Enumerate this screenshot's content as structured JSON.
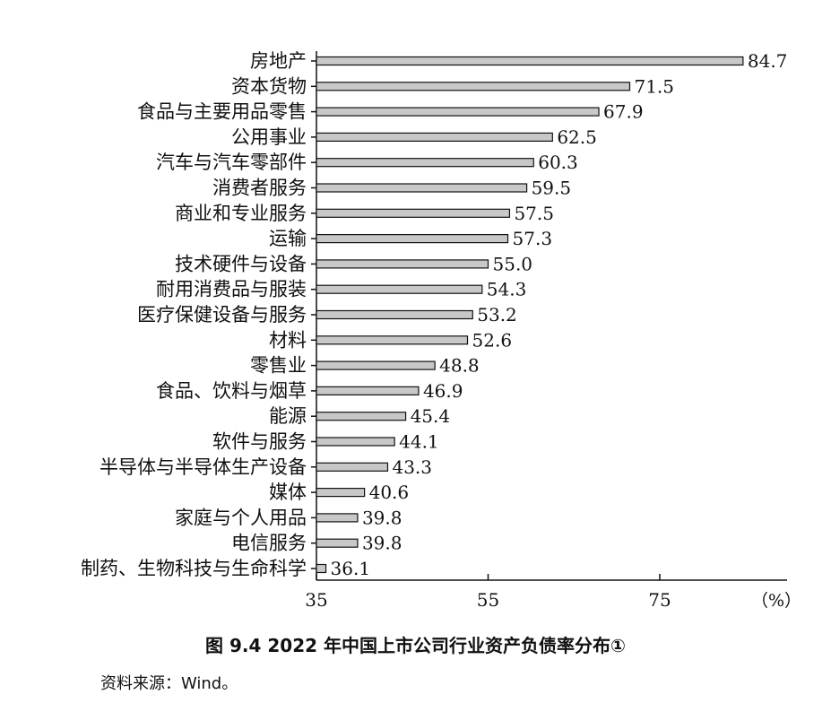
{
  "figure": {
    "title": "图 9.4   2022 年中国上市公司行业资产负债率分布①",
    "source": "资料来源：Wind。"
  },
  "chart_data": {
    "type": "bar",
    "orientation": "horizontal",
    "unit": "（%）",
    "xlim": [
      35,
      88
    ],
    "xticks": [
      35,
      55,
      75
    ],
    "categories": [
      "房地产",
      "资本货物",
      "食品与主要用品零售",
      "公用事业",
      "汽车与汽车零部件",
      "消费者服务",
      "商业和专业服务",
      "运输",
      "技术硬件与设备",
      "耐用消费品与服装",
      "医疗保健设备与服务",
      "材料",
      "零售业",
      "食品、饮料与烟草",
      "能源",
      "软件与服务",
      "半导体与半导体生产设备",
      "媒体",
      "家庭与个人用品",
      "电信服务",
      "制药、生物科技与生命科学"
    ],
    "values": [
      84.7,
      71.5,
      67.9,
      62.5,
      60.3,
      59.5,
      57.5,
      57.3,
      55.0,
      54.3,
      53.2,
      52.6,
      48.8,
      46.9,
      45.4,
      44.1,
      43.3,
      40.6,
      39.8,
      39.8,
      36.1
    ],
    "value_labels": [
      "84.7",
      "71.5",
      "67.9",
      "62.5",
      "60.3",
      "59.5",
      "57.5",
      "57.3",
      "55.0",
      "54.3",
      "53.2",
      "52.6",
      "48.8",
      "46.9",
      "45.4",
      "44.1",
      "43.3",
      "40.6",
      "39.8",
      "39.8",
      "36.1"
    ]
  }
}
